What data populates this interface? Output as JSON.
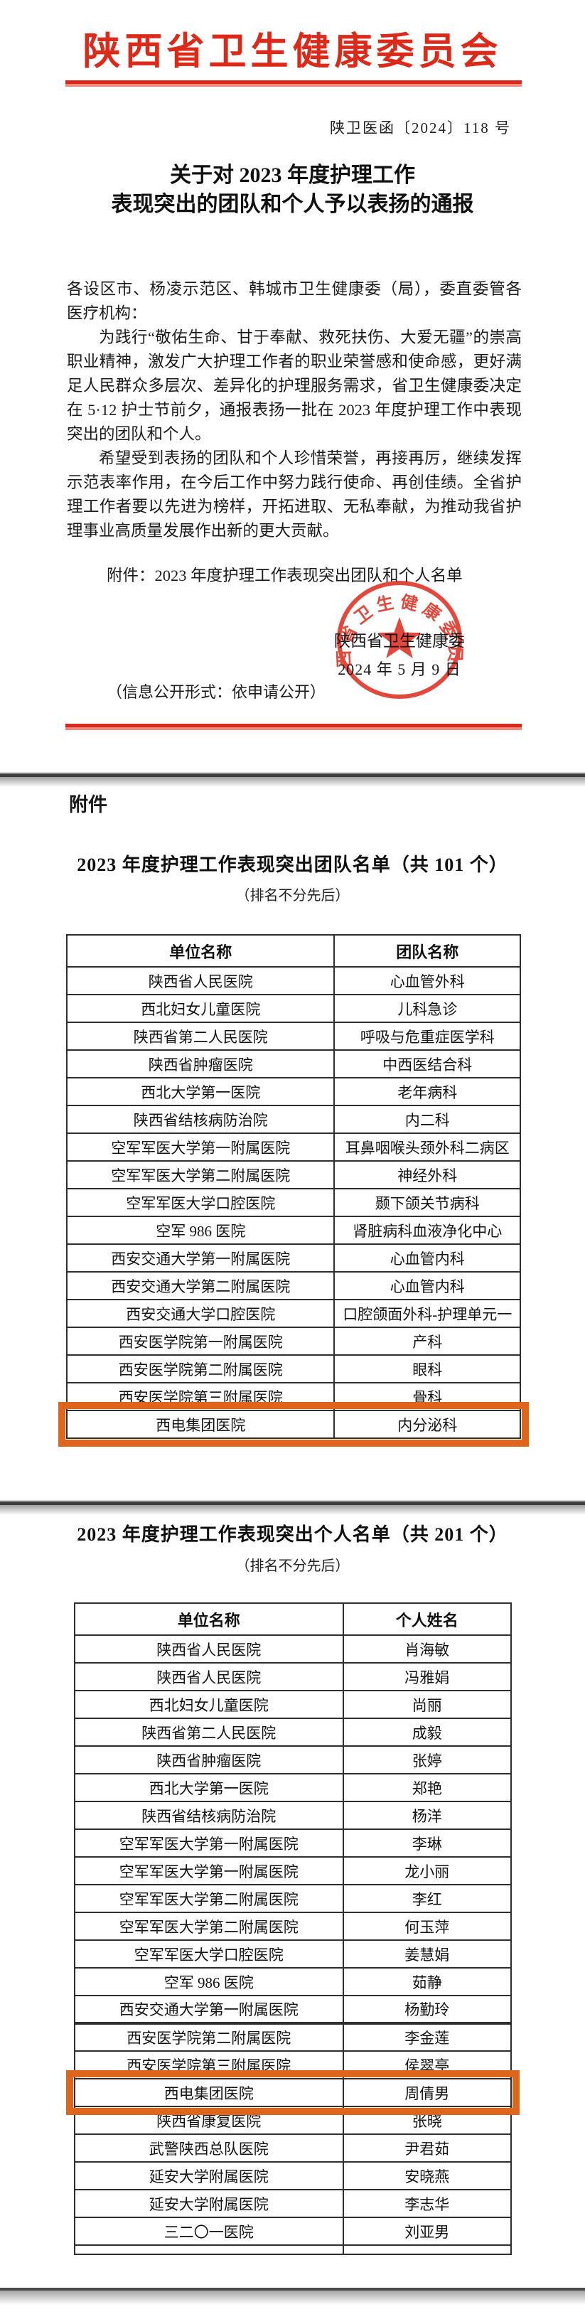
{
  "colors": {
    "accent_red": "#dc2a1a",
    "highlight_orange": "#dd661c"
  },
  "letterhead": {
    "agency": "陕西省卫生健康委员会",
    "doc_number": "陕卫医函〔2024〕118 号",
    "title_line1": "关于对 2023 年度护理工作",
    "title_line2": "表现突出的团队和个人予以表扬的通报",
    "salutation": "各设区市、杨凌示范区、韩城市卫生健康委（局），委直委管各医疗机构：",
    "paragraph1": "为践行“敬佑生命、甘于奉献、救死扶伤、大爱无疆”的崇高职业精神，激发广大护理工作者的职业荣誉感和使命感，更好满足人民群众多层次、差异化的护理服务需求，省卫生健康委决定在 5·12 护士节前夕，通报表扬一批在 2023 年度护理工作中表现突出的团队和个人。",
    "paragraph2": "希望受到表扬的团队和个人珍惜荣誉，再接再厉，继续发挥示范表率作用，在今后工作中努力践行使命、再创佳绩。全省护理工作者要以先进为榜样，开拓进取、无私奉献，为推动我省护理事业高质量发展作出新的更大贡献。",
    "attachment_note": "附件：2023 年度护理工作表现突出团队和个人名单",
    "signer": "陕西省卫生健康委",
    "date": "2024 年 5 月 9 日",
    "public_note": "（信息公开形式：依申请公开）",
    "seal_text": "陕西省卫生健康委员会"
  },
  "attachment_page": {
    "label": "附件",
    "team_table": {
      "title": "2023 年度护理工作表现突出团队名单（共 101 个）",
      "subtitle": "（排名不分先后）",
      "col_unit": "单位名称",
      "col_value": "团队名称",
      "rows": [
        {
          "unit": "陕西省人民医院",
          "value": "心血管外科"
        },
        {
          "unit": "西北妇女儿童医院",
          "value": "儿科急诊"
        },
        {
          "unit": "陕西省第二人民医院",
          "value": "呼吸与危重症医学科"
        },
        {
          "unit": "陕西省肿瘤医院",
          "value": "中西医结合科"
        },
        {
          "unit": "西北大学第一医院",
          "value": "老年病科"
        },
        {
          "unit": "陕西省结核病防治院",
          "value": "内二科"
        },
        {
          "unit": "空军军医大学第一附属医院",
          "value": "耳鼻咽喉头颈外科二病区"
        },
        {
          "unit": "空军军医大学第二附属医院",
          "value": "神经外科"
        },
        {
          "unit": "空军军医大学口腔医院",
          "value": "颞下颌关节病科"
        },
        {
          "unit": "空军 986 医院",
          "value": "肾脏病科血液净化中心"
        },
        {
          "unit": "西安交通大学第一附属医院",
          "value": "心血管内科"
        },
        {
          "unit": "西安交通大学第二附属医院",
          "value": "心血管内科"
        },
        {
          "unit": "西安交通大学口腔医院",
          "value": "口腔颌面外科-护理单元一"
        },
        {
          "unit": "西安医学院第一附属医院",
          "value": "产科"
        },
        {
          "unit": "西安医学院第二附属医院",
          "value": "眼科"
        },
        {
          "unit": "西安医学院第三附属医院",
          "value": "骨科"
        },
        {
          "unit": "西电集团医院",
          "value": "内分泌科",
          "highlight": true
        }
      ]
    },
    "individual_table": {
      "title": "2023 年度护理工作表现突出个人名单（共 201 个）",
      "subtitle": "（排名不分先后）",
      "col_unit": "单位名称",
      "col_value": "个人姓名",
      "rows": [
        {
          "unit": "陕西省人民医院",
          "value": "肖海敏"
        },
        {
          "unit": "陕西省人民医院",
          "value": "冯雅娟"
        },
        {
          "unit": "西北妇女儿童医院",
          "value": "尚丽"
        },
        {
          "unit": "陕西省第二人民医院",
          "value": "成毅"
        },
        {
          "unit": "陕西省肿瘤医院",
          "value": "张婷"
        },
        {
          "unit": "西北大学第一医院",
          "value": "郑艳"
        },
        {
          "unit": "陕西省结核病防治院",
          "value": "杨洋"
        },
        {
          "unit": "空军军医大学第一附属医院",
          "value": "李琳"
        },
        {
          "unit": "空军军医大学第一附属医院",
          "value": "龙小丽"
        },
        {
          "unit": "空军军医大学第二附属医院",
          "value": "李红"
        },
        {
          "unit": "空军军医大学第二附属医院",
          "value": "何玉萍"
        },
        {
          "unit": "空军军医大学口腔医院",
          "value": "姜慧娟"
        },
        {
          "unit": "空军 986 医院",
          "value": "茹静"
        },
        {
          "unit": "西安交通大学第一附属医院",
          "value": "杨勤玲"
        },
        {
          "unit": "西安医学院第二附属医院",
          "value": "李金莲"
        },
        {
          "unit": "西安医学院第三附属医院",
          "value": "侯翠亭"
        },
        {
          "unit": "西电集团医院",
          "value": "周倩男",
          "highlight": true
        },
        {
          "unit": "陕西省康复医院",
          "value": "张晓"
        },
        {
          "unit": "武警陕西总队医院",
          "value": "尹君茹"
        },
        {
          "unit": "延安大学附属医院",
          "value": "安晓燕"
        },
        {
          "unit": "延安大学附属医院",
          "value": "李志华"
        },
        {
          "unit": "三二〇一医院",
          "value": "刘亚男"
        }
      ]
    }
  }
}
